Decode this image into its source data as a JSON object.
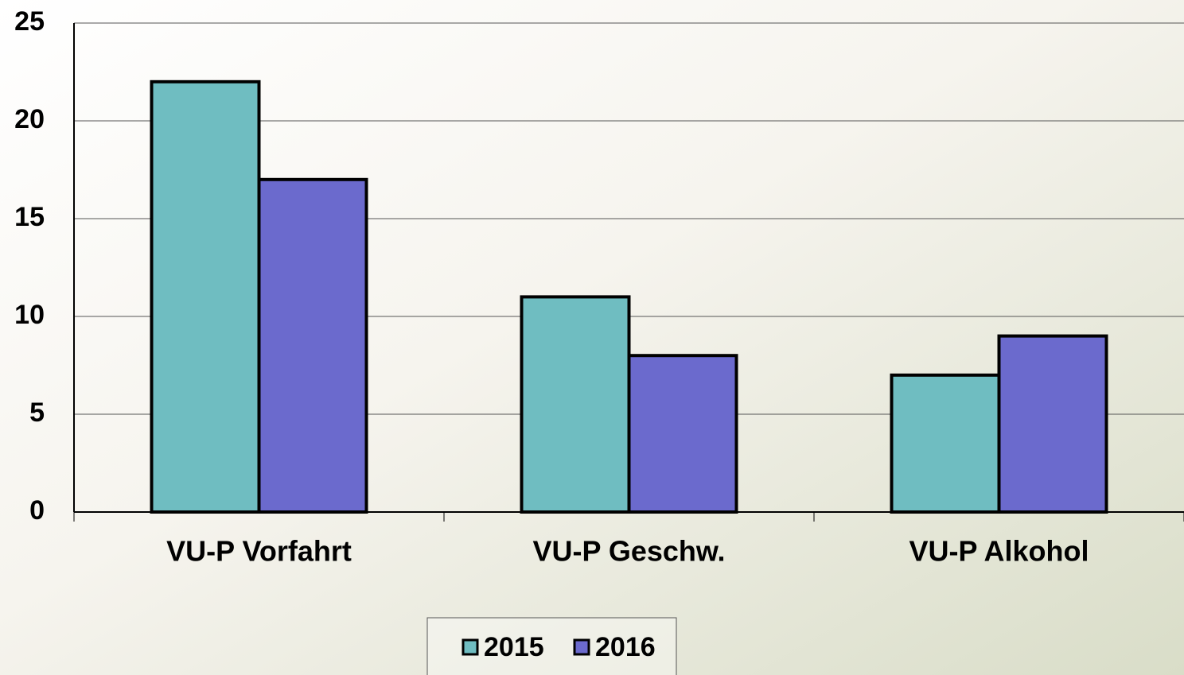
{
  "chart_data": {
    "type": "bar",
    "categories": [
      "VU-P Vorfahrt",
      "VU-P Geschw.",
      "VU-P Alkohol"
    ],
    "series": [
      {
        "name": "2015",
        "color": "#6fbdc1",
        "values": [
          22,
          11,
          7
        ]
      },
      {
        "name": "2016",
        "color": "#6b6acd",
        "values": [
          17,
          8,
          9
        ]
      }
    ],
    "ylim": [
      0,
      25
    ],
    "yticks": [
      0,
      5,
      10,
      15,
      20,
      25
    ],
    "grid": true,
    "legend": "bottom"
  }
}
